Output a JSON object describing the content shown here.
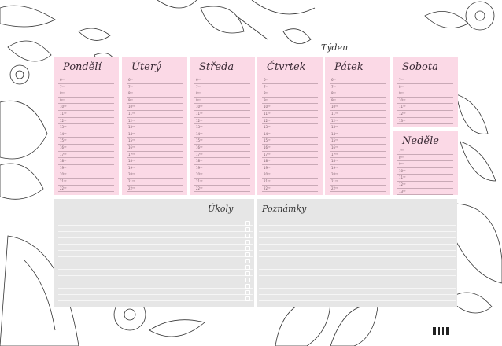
{
  "week_label": "Týden",
  "weekdays": [
    {
      "name": "Pondělí"
    },
    {
      "name": "Úterý"
    },
    {
      "name": "Středa"
    },
    {
      "name": "Čtvrtek"
    },
    {
      "name": "Pátek"
    }
  ],
  "weekday_hours": [
    "6⁰⁰",
    "7⁰⁰",
    "8⁰⁰",
    "9⁰⁰",
    "10⁰⁰",
    "11⁰⁰",
    "12⁰⁰",
    "13⁰⁰",
    "14⁰⁰",
    "15⁰⁰",
    "16⁰⁰",
    "17⁰⁰",
    "18⁰⁰",
    "19⁰⁰",
    "20⁰⁰",
    "21⁰⁰",
    "22⁰⁰"
  ],
  "weekend": [
    {
      "name": "Sobota"
    },
    {
      "name": "Neděle"
    }
  ],
  "weekend_hours": [
    "7⁰⁰",
    "8⁰⁰",
    "9⁰⁰",
    "10⁰⁰",
    "11⁰⁰",
    "12⁰⁰",
    "13⁰⁰"
  ],
  "tasks_label": "Úkoly",
  "notes_label": "Poznámky",
  "colors": {
    "day_bg": "#fbd9e6",
    "section_bg": "#e6e6e6",
    "line_art": "#333333"
  }
}
